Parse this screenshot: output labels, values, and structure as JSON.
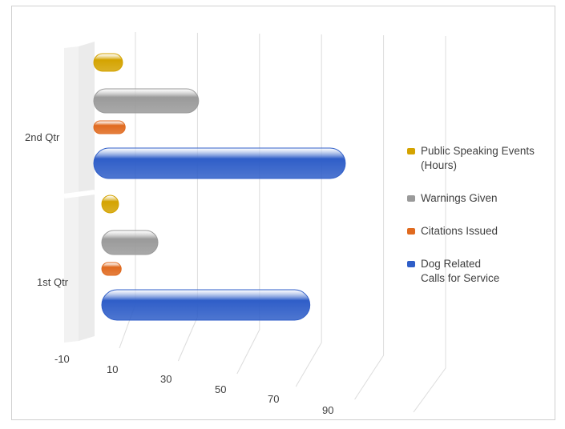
{
  "chart_data": {
    "type": "bar",
    "orientation": "horizontal",
    "style": "3d-cylinder",
    "categories": [
      "1st Qtr",
      "2nd Qtr"
    ],
    "series": [
      {
        "name": "Dog Related\nCalls for Service",
        "color": "#2f5ec8",
        "values": [
          74,
          86
        ]
      },
      {
        "name": "Citations Issued",
        "color": "#e06a1f",
        "values": [
          2,
          2
        ]
      },
      {
        "name": "Warnings Given",
        "color": "#9a9a9a",
        "values": [
          16,
          30
        ]
      },
      {
        "name": "Public Speaking Events\n(Hours)",
        "color": "#d4a300",
        "values": [
          1,
          1
        ]
      }
    ],
    "xlim": [
      -10,
      90
    ],
    "xticks": [
      "-10",
      "10",
      "30",
      "50",
      "70",
      "90"
    ],
    "grid": true,
    "legend_position": "right",
    "title": "",
    "xlabel": "",
    "ylabel": ""
  }
}
